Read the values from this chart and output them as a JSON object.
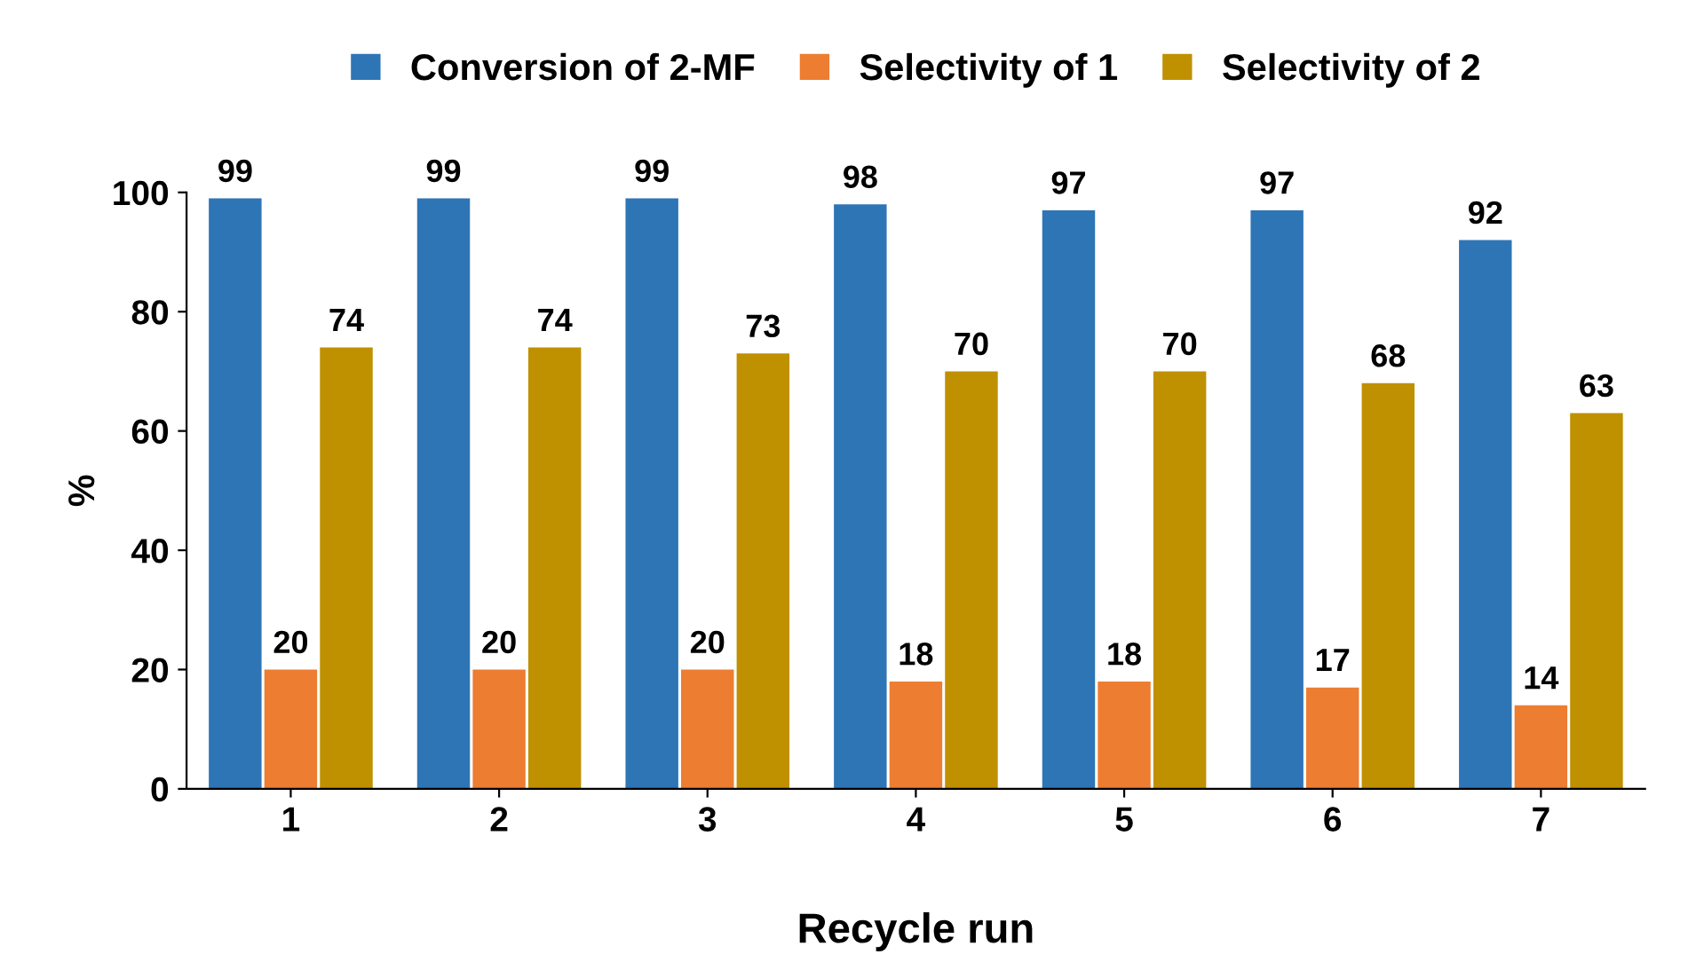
{
  "chart_data": {
    "type": "bar",
    "xlabel": "Recycle run",
    "ylabel": "%",
    "categories": [
      "1",
      "2",
      "3",
      "4",
      "5",
      "6",
      "7"
    ],
    "series": [
      {
        "name": "Conversion of 2-MF",
        "color": "#2e75b6",
        "values": [
          99,
          99,
          99,
          98,
          97,
          97,
          92
        ]
      },
      {
        "name": "Selectivity of 1",
        "color": "#ed7d31",
        "values": [
          20,
          20,
          20,
          18,
          18,
          17,
          14
        ]
      },
      {
        "name": "Selectivity of 2",
        "color": "#bf9000",
        "values": [
          74,
          74,
          73,
          70,
          70,
          68,
          63
        ]
      }
    ],
    "ylim": [
      0,
      100
    ],
    "yticks": [
      0,
      20,
      40,
      60,
      80,
      100
    ],
    "grid": false,
    "legend": "top",
    "data_labels": true
  }
}
